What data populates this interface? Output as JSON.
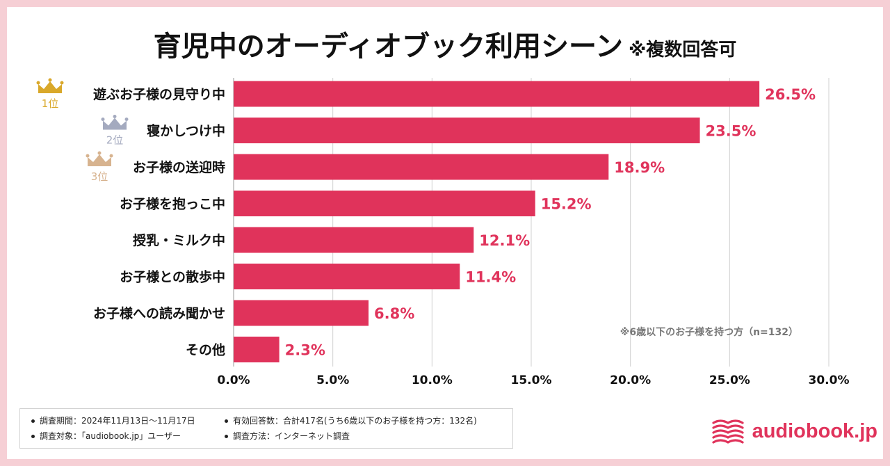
{
  "title": "育児中のオーディオブック利用シーン",
  "title_note": "※複数回答可",
  "colors": {
    "bar": "#e0335b",
    "gold": "#d9a82a",
    "silver": "#a4aabf",
    "bronze": "#d7b38f",
    "grid": "#d0d0d0",
    "background": "#f6cfd5"
  },
  "chart_data": {
    "type": "bar",
    "orientation": "horizontal",
    "categories": [
      "遊ぶお子様の見守り中",
      "寝かしつけ中",
      "お子様の送迎時",
      "お子様を抱っこ中",
      "授乳・ミルク中",
      "お子様との散歩中",
      "お子様への読み聞かせ",
      "その他"
    ],
    "values": [
      26.5,
      23.5,
      18.9,
      15.2,
      12.1,
      11.4,
      6.8,
      2.3
    ],
    "value_labels": [
      "26.5%",
      "23.5%",
      "18.9%",
      "15.2%",
      "12.1%",
      "11.4%",
      "6.8%",
      "2.3%"
    ],
    "xlim": [
      0,
      30
    ],
    "ticks": [
      0,
      5,
      10,
      15,
      20,
      25,
      30
    ],
    "tick_labels": [
      "0.0%",
      "5.0%",
      "10.0%",
      "15.0%",
      "20.0%",
      "25.0%",
      "30.0%"
    ],
    "ranks": [
      "1位",
      "2位",
      "3位"
    ],
    "note": "※6歳以下のお子様を持つ方（n=132）",
    "grid": true
  },
  "footer": {
    "period": "調査期間：2024年11月13日〜11月17日",
    "target": "調査対象：「audiobook.jp」ユーザー",
    "responses": "有効回答数：合計417名(うち6歳以下のお子様を持つ方：132名)",
    "method": "調査方法：インターネット調査"
  },
  "brand": {
    "name": "audiobook.jp",
    "icon": "book-stack-icon"
  }
}
